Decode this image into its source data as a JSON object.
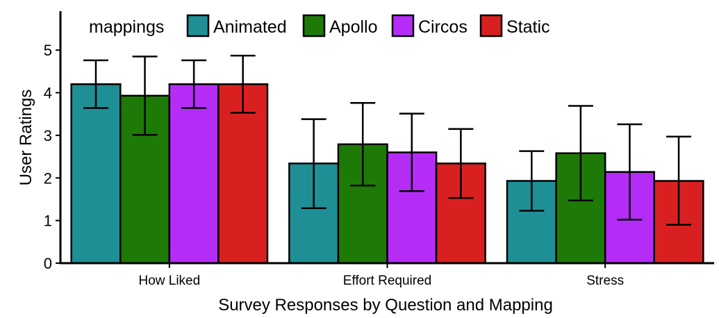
{
  "chart_data": {
    "type": "bar",
    "title": "",
    "xlabel": "Survey Responses by Question and Mapping",
    "ylabel": "User Ratings",
    "ylim": [
      0,
      5.85
    ],
    "yticks": [
      0,
      1,
      2,
      3,
      4,
      5
    ],
    "grid": false,
    "legend": {
      "title": "mappings",
      "position": "top-left"
    },
    "categories": [
      "How Liked",
      "Effort Required",
      "Stress"
    ],
    "series": [
      {
        "name": "Animated",
        "color": "#1f8f96",
        "values": [
          4.2,
          2.34,
          1.93
        ],
        "error_low": [
          3.64,
          1.29,
          1.23
        ],
        "error_high": [
          4.76,
          3.38,
          2.63
        ]
      },
      {
        "name": "Apollo",
        "color": "#1e7a07",
        "values": [
          3.93,
          2.79,
          2.58
        ],
        "error_low": [
          3.01,
          1.82,
          1.47
        ],
        "error_high": [
          4.85,
          3.76,
          3.69
        ]
      },
      {
        "name": "Circos",
        "color": "#b52cf7",
        "values": [
          4.2,
          2.6,
          2.14
        ],
        "error_low": [
          3.64,
          1.69,
          1.02
        ],
        "error_high": [
          4.76,
          3.51,
          3.26
        ]
      },
      {
        "name": "Static",
        "color": "#d92020",
        "values": [
          4.2,
          2.34,
          1.93
        ],
        "error_low": [
          3.53,
          1.53,
          0.9
        ],
        "error_high": [
          4.87,
          3.15,
          2.97
        ]
      }
    ]
  }
}
